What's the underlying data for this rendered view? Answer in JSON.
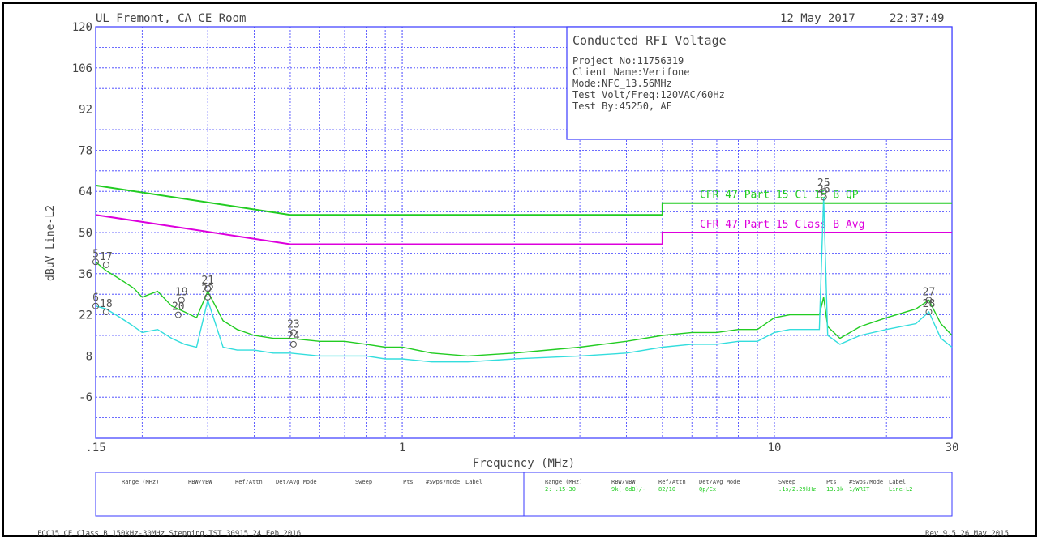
{
  "header": {
    "site": "UL Fremont, CA CE Room",
    "date": "12 May 2017",
    "time": "22:37:49"
  },
  "info_box": {
    "title": "Conducted RFI Voltage",
    "lines": [
      "Project No:11756319",
      "Client Name:Verifone",
      "Mode:NFC_13.56MHz",
      "Test Volt/Freq:120VAC/60Hz",
      "Test By:45250, AE"
    ]
  },
  "footer": {
    "left": "FCC15 CE Class B 150kHz-30MHz Stepping.TST 30915 24 Feb 2016",
    "right": "Rev 9.5 26 May 2015"
  },
  "settings_table": {
    "headers": [
      "Range (MHz)",
      "RBW/VBW",
      "Ref/Attn",
      "Det/Avg Mode",
      "Sweep",
      "Pts",
      "#Swps/Mode",
      "Label"
    ],
    "row": [
      "2: .15-30",
      "9k(-6dB)/-",
      "82/10",
      "Qp/Cx",
      ".1s/2.29kHz",
      "13.3k",
      "1/WRIT",
      "Line-L2"
    ]
  },
  "colors": {
    "grid": "#3a3aff",
    "limit_qp": "#22cc22",
    "limit_avg": "#dd00dd",
    "trace_qp": "#22cc22",
    "trace_avg": "#33dddd",
    "text": "#444444",
    "accent_green": "#22cc22"
  },
  "chart_data": {
    "type": "line",
    "xlabel": "Frequency (MHz)",
    "ylabel": "dBuV Line-L2",
    "x_scale": "log",
    "xlim": [
      0.15,
      30
    ],
    "ylim": [
      -20,
      120
    ],
    "x_tick_labels": [
      ".15",
      "1",
      "10",
      "30"
    ],
    "y_ticks": [
      -6,
      8,
      22,
      36,
      50,
      64,
      78,
      92,
      106,
      120
    ],
    "grid": true,
    "limits": [
      {
        "name": "CFR 47 Part 15 Cl 15 B QP",
        "points": [
          [
            0.15,
            66
          ],
          [
            0.5,
            56
          ],
          [
            5,
            56
          ],
          [
            5,
            60
          ],
          [
            30,
            60
          ]
        ]
      },
      {
        "name": "CFR 47 Part 15 Class B Avg",
        "points": [
          [
            0.15,
            56
          ],
          [
            0.5,
            46
          ],
          [
            5,
            46
          ],
          [
            5,
            50
          ],
          [
            30,
            50
          ]
        ]
      }
    ],
    "series": [
      {
        "x": [
          0.15,
          0.16,
          0.17,
          0.18,
          0.19,
          0.2,
          0.22,
          0.24,
          0.26,
          0.28,
          0.3,
          0.33,
          0.36,
          0.4,
          0.45,
          0.5,
          0.6,
          0.7,
          0.8,
          0.9,
          1.0,
          1.2,
          1.5,
          2.0,
          3.0,
          4.0,
          5.0,
          6.0,
          7.0,
          8.0,
          9.0,
          10.0,
          11.0,
          12.0,
          13.2,
          13.56,
          13.9,
          15.0,
          17.0,
          20.0,
          24.0,
          26.0,
          28.0,
          30.0
        ],
        "y": [
          40,
          37,
          35,
          33,
          31,
          28,
          30,
          25,
          23,
          21,
          30,
          20,
          17,
          15,
          14,
          14,
          13,
          13,
          12,
          11,
          11,
          9,
          8,
          9,
          11,
          13,
          15,
          16,
          16,
          17,
          17,
          21,
          22,
          22,
          22,
          28,
          18,
          14,
          18,
          21,
          24,
          27,
          19,
          15
        ]
      },
      {
        "x": [
          0.15,
          0.16,
          0.17,
          0.18,
          0.19,
          0.2,
          0.22,
          0.24,
          0.26,
          0.28,
          0.3,
          0.33,
          0.36,
          0.4,
          0.45,
          0.5,
          0.6,
          0.7,
          0.8,
          0.9,
          1.0,
          1.2,
          1.5,
          2.0,
          3.0,
          4.0,
          5.0,
          6.0,
          7.0,
          8.0,
          9.0,
          10.0,
          11.0,
          12.0,
          13.2,
          13.56,
          13.9,
          15.0,
          17.0,
          20.0,
          24.0,
          26.0,
          28.0,
          30.0
        ],
        "y": [
          25,
          24,
          22,
          20,
          18,
          16,
          17,
          14,
          12,
          11,
          27,
          11,
          10,
          10,
          9,
          9,
          8,
          8,
          8,
          7,
          7,
          6,
          6,
          7,
          8,
          9,
          11,
          12,
          12,
          13,
          13,
          16,
          17,
          17,
          17,
          62,
          15,
          12,
          15,
          17,
          19,
          23,
          14,
          11
        ]
      }
    ],
    "markers": [
      {
        "label": "5",
        "x": 0.15,
        "y": 40
      },
      {
        "label": "17",
        "x": 0.16,
        "y": 39
      },
      {
        "label": "6",
        "x": 0.15,
        "y": 25
      },
      {
        "label": "18",
        "x": 0.16,
        "y": 23
      },
      {
        "label": "19",
        "x": 0.255,
        "y": 27
      },
      {
        "label": "20",
        "x": 0.25,
        "y": 22
      },
      {
        "label": "21",
        "x": 0.3,
        "y": 31
      },
      {
        "label": "22",
        "x": 0.3,
        "y": 28
      },
      {
        "label": "23",
        "x": 0.51,
        "y": 16
      },
      {
        "label": "24",
        "x": 0.51,
        "y": 12
      },
      {
        "label": "25",
        "x": 13.56,
        "y": 64
      },
      {
        "label": "26",
        "x": 13.56,
        "y": 62
      },
      {
        "label": "27",
        "x": 26.0,
        "y": 27
      },
      {
        "label": "28",
        "x": 26.0,
        "y": 23
      }
    ]
  }
}
